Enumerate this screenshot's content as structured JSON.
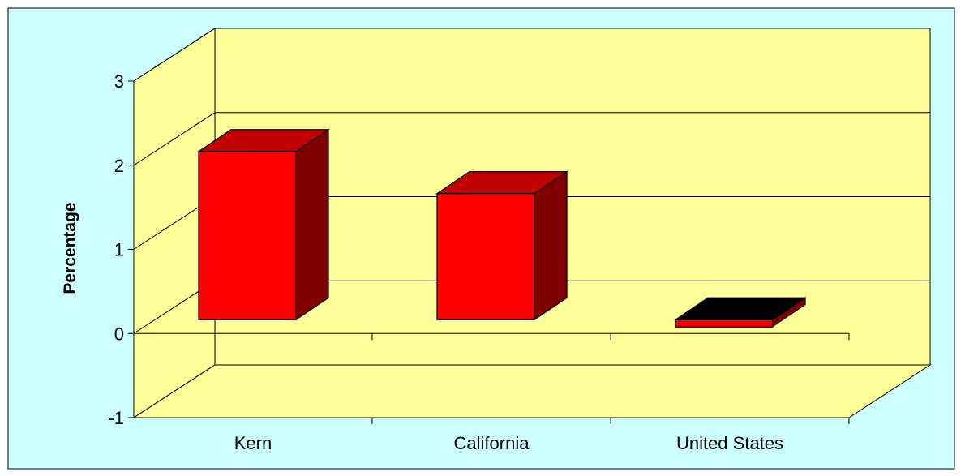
{
  "chart_data": {
    "type": "bar",
    "title": "",
    "xlabel": "",
    "ylabel": "Percentage",
    "categories": [
      "Kern",
      "California",
      "United States"
    ],
    "values": [
      2.0,
      1.5,
      -0.08
    ],
    "ylim": [
      -1,
      3
    ],
    "yticks": [
      "-1",
      "0",
      "1",
      "2",
      "3"
    ],
    "grid": true,
    "legend": "none",
    "colors": {
      "background": "#ccffff",
      "wall": "#ffff99",
      "bar_front": "#ff0000",
      "bar_top": "#c00000",
      "bar_side": "#800000"
    }
  }
}
